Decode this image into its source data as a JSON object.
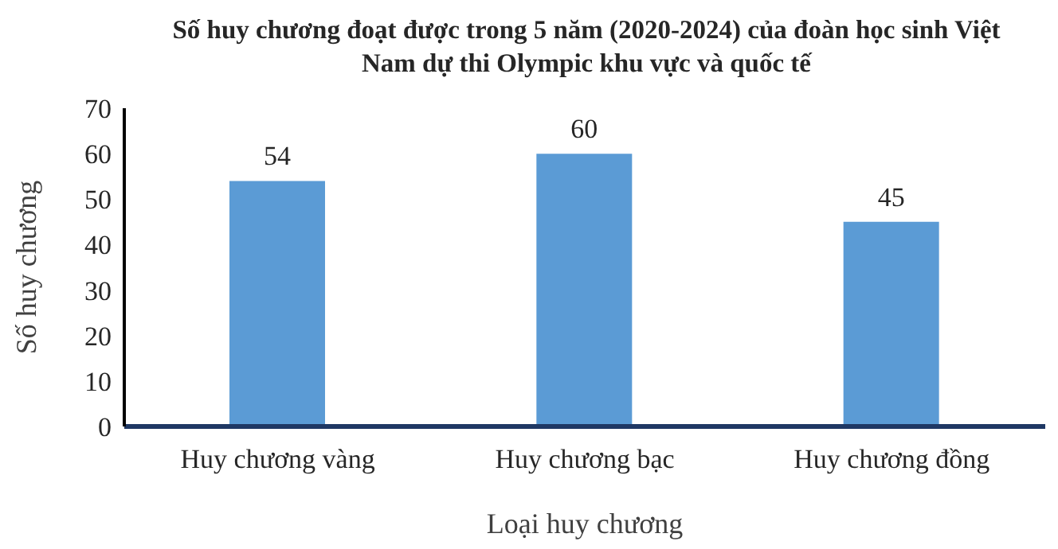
{
  "chart_data": {
    "type": "bar",
    "title": "Số huy chương đoạt được trong 5 năm (2020-2024) của đoàn học sinh Việt Nam dự thi Olympic khu vực và quốc tế",
    "xlabel": "Loại huy chương",
    "ylabel": "Số huy chương",
    "categories": [
      "Huy chương vàng",
      "Huy chương bạc",
      "Huy chương đồng"
    ],
    "values": [
      54,
      60,
      45
    ],
    "color": "#5b9bd5",
    "ylim": [
      0,
      70
    ],
    "yticks": [
      0,
      10,
      20,
      30,
      40,
      50,
      60,
      70
    ],
    "data_labels": true,
    "grid": false,
    "legend": false
  }
}
